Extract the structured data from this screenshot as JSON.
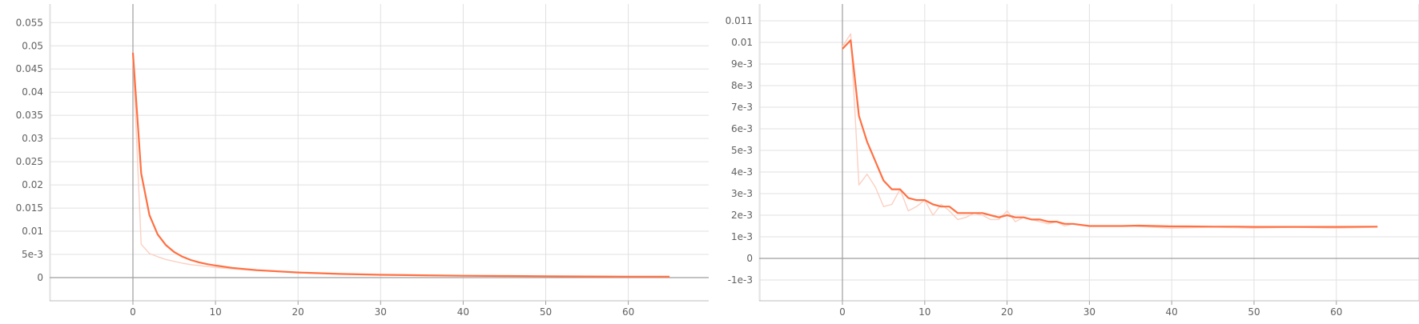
{
  "chart_data": [
    {
      "type": "line",
      "title": "",
      "xlabel": "",
      "ylabel": "",
      "xlim": [
        -10,
        70
      ],
      "ylim": [
        -0.005,
        0.058
      ],
      "grid": true,
      "legend": "none",
      "x_ticks": [
        "0",
        "10",
        "20",
        "30",
        "40",
        "50",
        "60"
      ],
      "x_tick_values": [
        0,
        10,
        20,
        30,
        40,
        50,
        60
      ],
      "y_ticks": [
        "0",
        "5e-3",
        "0.01",
        "0.015",
        "0.02",
        "0.025",
        "0.03",
        "0.035",
        "0.04",
        "0.045",
        "0.05",
        "0.055"
      ],
      "y_tick_values": [
        0,
        0.005,
        0.01,
        0.015,
        0.02,
        0.025,
        0.03,
        0.035,
        0.04,
        0.045,
        0.05,
        0.055
      ],
      "series": [
        {
          "role": "raw",
          "color": "#fbd0c2",
          "x": [
            0,
            1,
            2,
            3,
            4,
            5,
            6,
            7,
            8,
            10,
            12,
            15,
            20,
            25,
            30,
            35,
            40,
            45,
            50,
            55,
            60,
            65
          ],
          "y": [
            0.048,
            0.0072,
            0.0052,
            0.0045,
            0.0039,
            0.0035,
            0.0031,
            0.0028,
            0.0026,
            0.0022,
            0.0019,
            0.0015,
            0.0011,
            0.0008,
            0.0006,
            0.0005,
            0.0004,
            0.0003,
            0.00025,
            0.0002,
            0.00018,
            0.00015
          ]
        },
        {
          "role": "smoothed",
          "color": "#ff7043",
          "x": [
            0,
            1,
            2,
            3,
            4,
            5,
            6,
            7,
            8,
            9,
            10,
            12,
            15,
            20,
            25,
            30,
            35,
            40,
            45,
            50,
            55,
            60,
            65
          ],
          "y": [
            0.0485,
            0.0225,
            0.0135,
            0.0093,
            0.007,
            0.0055,
            0.0045,
            0.0038,
            0.0033,
            0.0029,
            0.0026,
            0.0021,
            0.0016,
            0.0011,
            0.0008,
            0.0006,
            0.0005,
            0.0004,
            0.00035,
            0.0003,
            0.00025,
            0.0002,
            0.0002
          ]
        }
      ]
    },
    {
      "type": "line",
      "title": "",
      "xlabel": "",
      "ylabel": "",
      "xlim": [
        -10,
        70
      ],
      "ylim": [
        -0.0023,
        0.0116
      ],
      "grid": true,
      "legend": "none",
      "x_ticks": [
        "0",
        "10",
        "20",
        "30",
        "40",
        "50",
        "60"
      ],
      "x_tick_values": [
        0,
        10,
        20,
        30,
        40,
        50,
        60
      ],
      "y_ticks": [
        "-1e-3",
        "0",
        "1e-3",
        "2e-3",
        "3e-3",
        "4e-3",
        "5e-3",
        "6e-3",
        "7e-3",
        "8e-3",
        "9e-3",
        "0.01",
        "0.011"
      ],
      "y_tick_values": [
        -0.001,
        0,
        0.001,
        0.002,
        0.003,
        0.004,
        0.005,
        0.006,
        0.007,
        0.008,
        0.009,
        0.01,
        0.011
      ],
      "series": [
        {
          "role": "raw",
          "color": "#fbd0c2",
          "x": [
            0,
            1,
            2,
            3,
            4,
            5,
            6,
            7,
            8,
            9,
            10,
            11,
            12,
            13,
            14,
            15,
            16,
            17,
            18,
            19,
            20,
            21,
            22,
            23,
            24,
            25,
            26,
            27,
            28,
            30,
            35,
            40,
            45,
            50,
            55,
            60,
            65
          ],
          "y": [
            0.0098,
            0.0104,
            0.0034,
            0.0039,
            0.0033,
            0.0024,
            0.0025,
            0.0032,
            0.0022,
            0.0024,
            0.0027,
            0.002,
            0.0025,
            0.0022,
            0.0018,
            0.0019,
            0.0021,
            0.002,
            0.0018,
            0.0018,
            0.0022,
            0.0017,
            0.0019,
            0.0018,
            0.0017,
            0.0016,
            0.0017,
            0.0015,
            0.0016,
            0.0015,
            0.0015,
            0.0014,
            0.00145,
            0.0014,
            0.00145,
            0.0014,
            0.00145
          ]
        },
        {
          "role": "smoothed",
          "color": "#ff7043",
          "x": [
            0,
            1,
            2,
            3,
            4,
            5,
            6,
            7,
            8,
            9,
            10,
            11,
            12,
            13,
            14,
            15,
            16,
            17,
            18,
            19,
            20,
            21,
            22,
            23,
            24,
            25,
            26,
            27,
            28,
            30,
            32,
            34,
            36,
            38,
            40,
            42,
            45,
            48,
            50,
            55,
            60,
            65
          ],
          "y": [
            0.0097,
            0.0101,
            0.0066,
            0.0054,
            0.0045,
            0.0036,
            0.0032,
            0.0032,
            0.0028,
            0.0027,
            0.0027,
            0.0025,
            0.0024,
            0.0024,
            0.0021,
            0.0021,
            0.0021,
            0.0021,
            0.002,
            0.0019,
            0.002,
            0.0019,
            0.0019,
            0.0018,
            0.0018,
            0.0017,
            0.0017,
            0.0016,
            0.0016,
            0.0015,
            0.0015,
            0.0015,
            0.00152,
            0.0015,
            0.00148,
            0.00148,
            0.00147,
            0.00147,
            0.00146,
            0.00146,
            0.00146,
            0.00147
          ]
        }
      ]
    }
  ]
}
